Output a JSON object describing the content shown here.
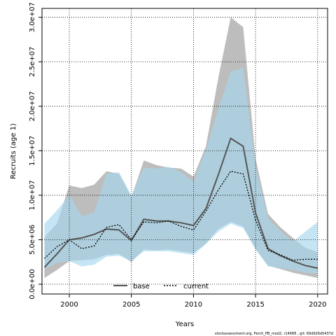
{
  "chart_data": {
    "type": "line",
    "xlabel": "Years",
    "ylabel": "Recruits (age 1)",
    "xlim": [
      1997.8,
      2020.8
    ],
    "ylim": [
      -1100000,
      31000000
    ],
    "x_ticks": [
      2000,
      2005,
      2010,
      2015,
      2020
    ],
    "y_ticks": [
      0,
      5000000,
      10000000,
      15000000,
      20000000,
      25000000,
      30000000
    ],
    "y_tick_labels": [
      "0.0e+00",
      "5.0e+06",
      "1.0e+07",
      "1.5e+07",
      "2.0e+07",
      "2.5e+07",
      "3.0e+07"
    ],
    "x_tick_labels": [
      "2000",
      "2005",
      "2010",
      "2015",
      "2020"
    ],
    "grid": true,
    "legend": {
      "position": "bottom-center",
      "entries": [
        "base",
        "current"
      ]
    },
    "x": [
      1998,
      1999,
      2000,
      2001,
      2002,
      2003,
      2004,
      2005,
      2006,
      2007,
      2008,
      2009,
      2010,
      2011,
      2012,
      2013,
      2014,
      2015,
      2016,
      2017,
      2018,
      2019,
      2020
    ],
    "series": [
      {
        "name": "base",
        "color": "#555555",
        "band_color": "#bdbdbd",
        "line_style": "solid",
        "values": [
          1900000,
          3400000,
          5000000,
          5200000,
          5600000,
          6200000,
          6100000,
          4900000,
          7300000,
          7100000,
          7100000,
          6900000,
          6600000,
          8500000,
          12300000,
          16400000,
          15500000,
          8000000,
          4000000,
          3200000,
          2600000,
          2100000,
          1800000
        ],
        "lower": [
          700000,
          1600000,
          2600000,
          2700000,
          2800000,
          3300000,
          3400000,
          2500000,
          3900000,
          3800000,
          3900000,
          3700000,
          3500000,
          4600000,
          6200000,
          7000000,
          6500000,
          4000000,
          2100000,
          1700000,
          1300000,
          1000000,
          700000
        ],
        "upper": [
          5300000,
          6800000,
          11100000,
          10800000,
          11200000,
          12700000,
          12400000,
          9800000,
          13900000,
          13400000,
          13100000,
          13000000,
          12100000,
          15500000,
          23200000,
          30000000,
          28900000,
          14100000,
          7900000,
          6400000,
          5200000,
          4100000,
          3600000
        ]
      },
      {
        "name": "current",
        "color": "#000000",
        "band_color": "#a6d7ee",
        "line_style": "dotted",
        "values": [
          2900000,
          4200000,
          5000000,
          4000000,
          4300000,
          6400000,
          6700000,
          5000000,
          7000000,
          6900000,
          7100000,
          6500000,
          6100000,
          8200000,
          10600000,
          12700000,
          12400000,
          7200000,
          3800000,
          3300000,
          2700000,
          2800000,
          2800000
        ],
        "lower": [
          1700000,
          2400000,
          2600000,
          2000000,
          2200000,
          3100000,
          3200000,
          2600000,
          3700000,
          3700000,
          3700000,
          3500000,
          3300000,
          4500000,
          5900000,
          6800000,
          6300000,
          3900000,
          2000000,
          1800000,
          1600000,
          1300000,
          1200000
        ],
        "upper": [
          6800000,
          8300000,
          10000000,
          7600000,
          8100000,
          12400000,
          12600000,
          10000000,
          13100000,
          13000000,
          13200000,
          12600000,
          11500000,
          15100000,
          19700000,
          23900000,
          24300000,
          13300000,
          7400000,
          6000000,
          4800000,
          5900000,
          7000000
        ]
      }
    ]
  },
  "footer": {
    "text": "stockassessment.org, Perch_PB_mod2, r14688 , git: 69d926d0437d"
  }
}
